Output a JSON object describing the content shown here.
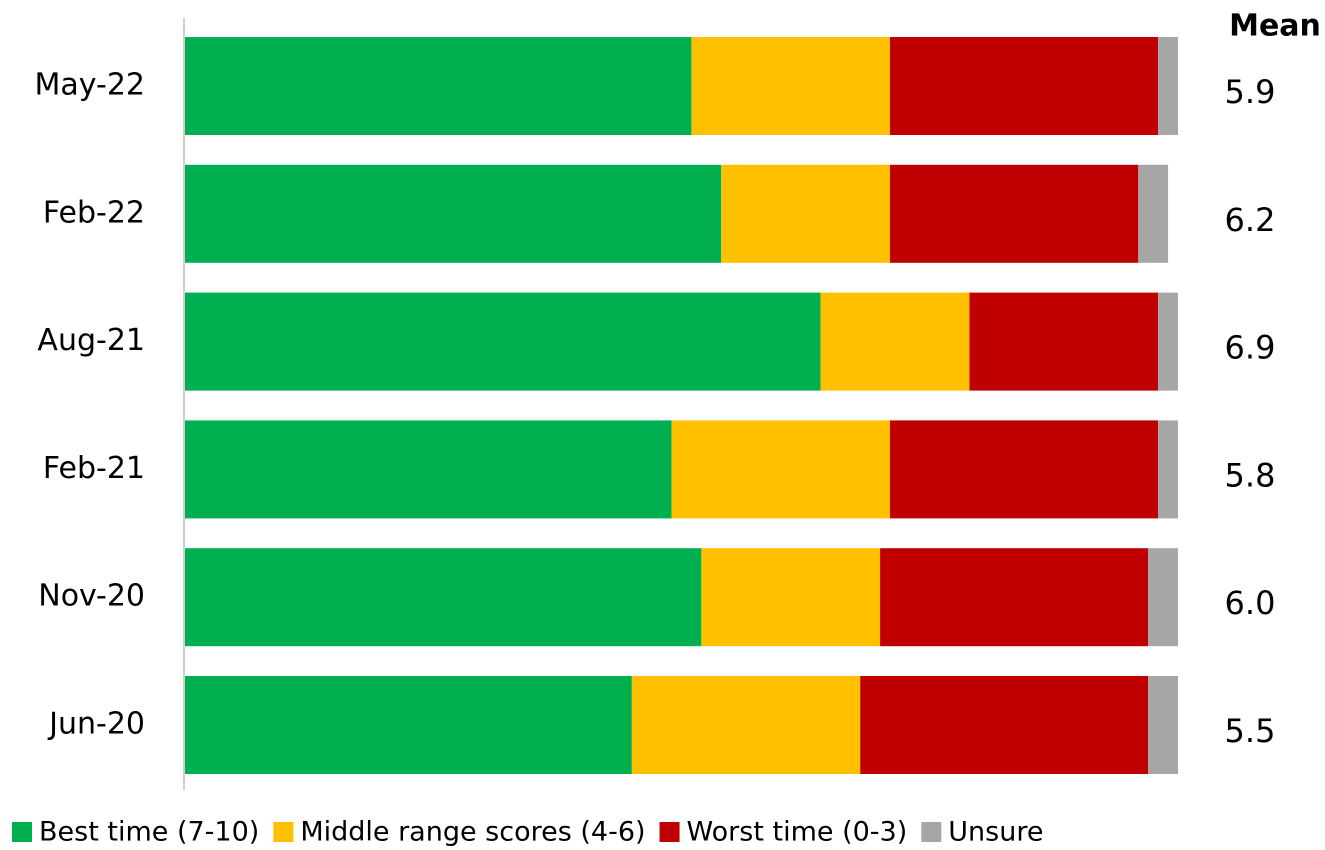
{
  "chart_data": {
    "type": "stacked-barh",
    "categories": [
      "May-22",
      "Feb-22",
      "Aug-21",
      "Feb-21",
      "Nov-20",
      "Jun-20"
    ],
    "xlim": [
      0,
      100
    ],
    "series": [
      {
        "name": "Best time (7-10)",
        "color": "#00b050",
        "values": [
          51,
          54,
          64,
          49,
          52,
          45
        ],
        "value_labels": [
          "51%",
          "54%",
          "64%",
          "49%",
          "52%",
          "45%"
        ]
      },
      {
        "name": "Middle range scores (4-6)",
        "color": "#ffc000",
        "values": [
          20,
          17,
          15,
          22,
          18,
          23
        ],
        "value_labels": [
          "20%",
          "17%",
          "15%",
          "22%",
          "18%",
          "23%"
        ]
      },
      {
        "name": "Worst time (0-3)",
        "color": "#c00000",
        "values": [
          27,
          25,
          19,
          27,
          27,
          29
        ],
        "value_labels": [
          "27%",
          "25%",
          "19%",
          "27%",
          "27%",
          "29%"
        ]
      },
      {
        "name": "Unsure",
        "color": "#a6a6a6",
        "values": [
          2,
          3,
          2,
          2,
          3,
          3
        ],
        "value_labels": [
          "2%",
          "3%",
          "2%",
          "2%",
          "3%",
          "3%"
        ]
      }
    ],
    "mean": {
      "title": "Mean",
      "values": [
        5.9,
        6.2,
        6.9,
        5.8,
        6.0,
        5.5
      ],
      "value_labels": [
        "5.9",
        "6.2",
        "6.9",
        "5.8",
        "6.0",
        "5.5"
      ]
    },
    "legend": "bottom"
  }
}
